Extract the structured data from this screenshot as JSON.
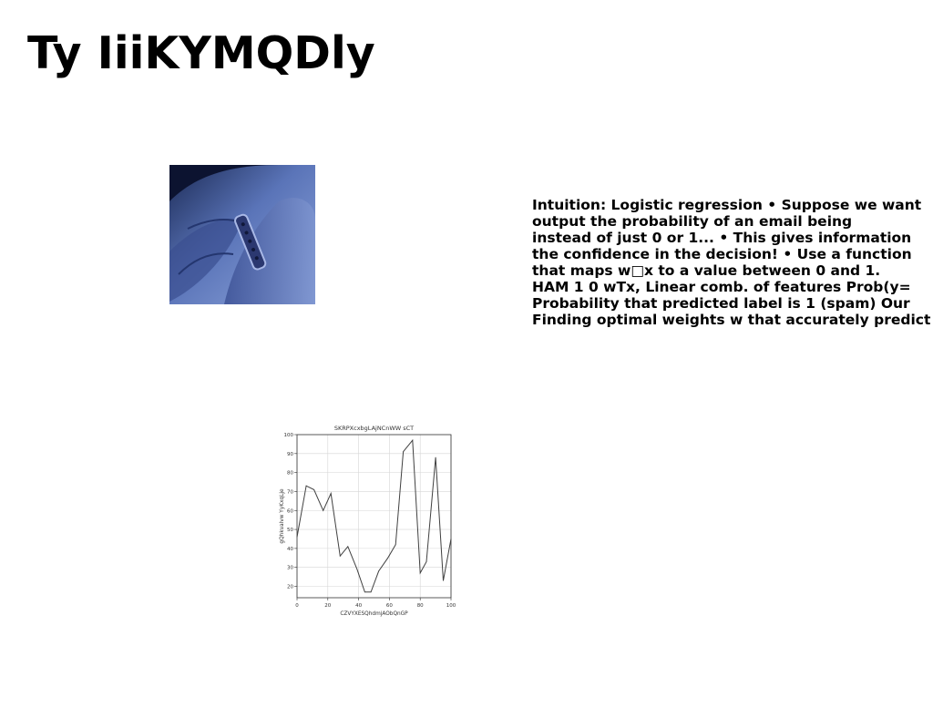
{
  "page": {
    "title": "Ty IiiKYMQDly"
  },
  "body_text_lines": [
    "Intuition: Logistic regression • Suppose we want",
    "output the probability of an email being",
    "instead of just 0 or 1... • This gives information",
    "the confidence in the decision! • Use a function",
    "that maps w□x to a value between 0 and 1.",
    "HAM 1 0 wTx, Linear comb. of features Prob(y=",
    "Probability that predicted label is 1 (spam) Our",
    "Finding optimal weights w that accurately predict"
  ],
  "chart_data": {
    "type": "line",
    "title": "SKRPXcxbgLAjNCnWW sCT",
    "xlabel": "CZVYXESQhdmjAObQnGP",
    "ylabel": "gQhkvalvw YyKxqLje",
    "xlim": [
      0,
      100
    ],
    "ylim": [
      14,
      100
    ],
    "xticks": [
      0,
      20,
      40,
      60,
      80,
      100
    ],
    "yticks": [
      20,
      30,
      40,
      50,
      60,
      70,
      80,
      90,
      100
    ],
    "grid": true,
    "x": [
      0,
      6,
      11,
      17,
      22,
      28,
      33,
      39,
      44,
      48,
      53,
      59,
      64,
      69,
      75,
      80,
      84,
      90,
      95,
      100
    ],
    "y": [
      46,
      73,
      71,
      60,
      69,
      36,
      41,
      29,
      17,
      17,
      28,
      35,
      42,
      91,
      97,
      27,
      33,
      88,
      23,
      45
    ],
    "series_color": "#404040"
  }
}
